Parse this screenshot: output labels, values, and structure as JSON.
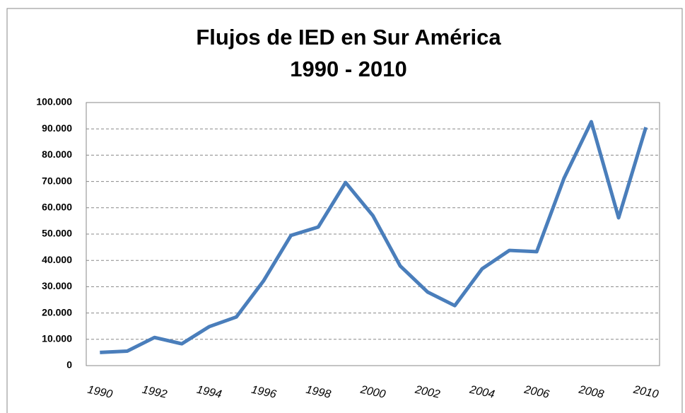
{
  "chart_data": {
    "type": "line",
    "title": "Flujos de IED en Sur América",
    "subtitle": "1990 - 2010",
    "categories": [
      "1990",
      null,
      "1992",
      null,
      "1994",
      null,
      "1996",
      null,
      "1998",
      null,
      "2000",
      null,
      "2002",
      null,
      "2004",
      null,
      "2006",
      null,
      "2008",
      null,
      "2010"
    ],
    "series": [
      {
        "color": "#4a7ebb",
        "values": [
          5000,
          5500,
          10700,
          8300,
          14800,
          18500,
          32300,
          49500,
          52700,
          69600,
          57000,
          37900,
          28000,
          22800,
          36800,
          43800,
          43300,
          71200,
          92700,
          56200,
          90600
        ]
      }
    ],
    "ylim": [
      0,
      100000
    ],
    "yticks": [
      0,
      {
        "value": 10000,
        "label": "10.000"
      },
      {
        "value": 20000,
        "label": "20.000"
      },
      {
        "value": 30000,
        "label": "30.000"
      },
      {
        "value": 40000,
        "label": "40.000"
      },
      {
        "value": 50000,
        "label": "50.000"
      },
      {
        "value": 60000,
        "label": "60.000"
      },
      {
        "value": 70000,
        "label": "70.000"
      },
      {
        "value": 80000,
        "label": "80.000"
      },
      {
        "value": 90000,
        "label": "90.000"
      },
      {
        "value": 100000,
        "label": "100.000"
      }
    ],
    "grid": true
  }
}
